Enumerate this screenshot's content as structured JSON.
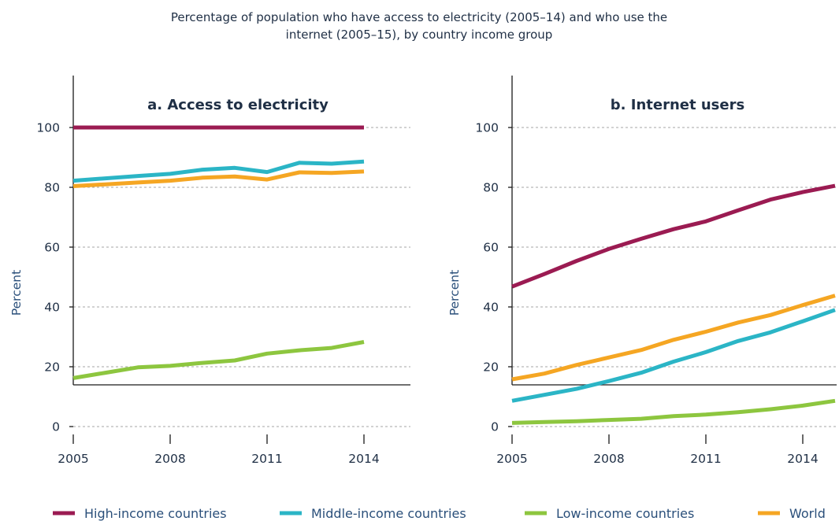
{
  "title_lines": [
    "Percentage of population who have access to electricity (2005–14) and who use the",
    "internet (2005–15), by country income group"
  ],
  "legend": [
    {
      "key": "high",
      "label": "High-income countries",
      "color": "#9b1b52"
    },
    {
      "key": "middle",
      "label": "Middle-income countries",
      "color": "#2bb5c6"
    },
    {
      "key": "low",
      "label": "Low-income countries",
      "color": "#8dc63f"
    },
    {
      "key": "world",
      "label": "World",
      "color": "#f5a623"
    }
  ],
  "chart_data": [
    {
      "type": "line",
      "title": "a. Access to electricity",
      "ylabel": "Percent",
      "xlabel": "",
      "x": [
        2005,
        2006,
        2007,
        2008,
        2009,
        2010,
        2011,
        2012,
        2013,
        2014
      ],
      "x_ticks": [
        2005,
        2008,
        2011,
        2014
      ],
      "xlim": [
        2005,
        2015
      ],
      "y_ticks": [
        0,
        20,
        40,
        60,
        80,
        100
      ],
      "ylim": [
        0,
        100
      ],
      "grid": true,
      "series": [
        {
          "name": "High-income countries",
          "key": "high",
          "values": [
            100,
            100,
            100,
            100,
            100,
            100,
            100,
            100,
            100,
            100
          ]
        },
        {
          "name": "Middle-income countries",
          "key": "middle",
          "values": [
            82.2,
            83.0,
            83.8,
            84.5,
            85.9,
            86.5,
            85.1,
            88.2,
            87.9,
            88.6
          ]
        },
        {
          "name": "World",
          "key": "world",
          "values": [
            80.4,
            81.0,
            81.6,
            82.2,
            83.2,
            83.6,
            82.6,
            85.0,
            84.8,
            85.3
          ]
        },
        {
          "name": "Low-income countries",
          "key": "low",
          "values": [
            16.2,
            18.0,
            19.8,
            20.3,
            21.3,
            22.1,
            24.4,
            25.5,
            26.3,
            28.3
          ]
        }
      ]
    },
    {
      "type": "line",
      "title": "b. Internet users",
      "ylabel": "Percent",
      "xlabel": "",
      "x": [
        2005,
        2006,
        2007,
        2008,
        2009,
        2010,
        2011,
        2012,
        2013,
        2014,
        2015
      ],
      "x_ticks": [
        2005,
        2008,
        2011,
        2014
      ],
      "xlim": [
        2005,
        2015
      ],
      "y_ticks": [
        0,
        20,
        40,
        60,
        80,
        100
      ],
      "ylim": [
        0,
        100
      ],
      "grid": true,
      "series": [
        {
          "name": "High-income countries",
          "key": "high",
          "values": [
            46.8,
            51.0,
            55.4,
            59.4,
            62.8,
            66.0,
            68.6,
            72.3,
            75.9,
            78.4,
            80.5
          ]
        },
        {
          "name": "World",
          "key": "world",
          "values": [
            15.8,
            17.7,
            20.6,
            23.1,
            25.6,
            29.0,
            31.7,
            34.8,
            37.3,
            40.6,
            43.8
          ]
        },
        {
          "name": "Middle-income countries",
          "key": "middle",
          "values": [
            8.6,
            10.6,
            12.6,
            15.2,
            18.0,
            21.7,
            24.9,
            28.6,
            31.5,
            35.2,
            39.0
          ]
        },
        {
          "name": "Low-income countries",
          "key": "low",
          "values": [
            1.2,
            1.5,
            1.8,
            2.2,
            2.6,
            3.5,
            4.0,
            4.8,
            5.8,
            7.0,
            8.6
          ]
        }
      ]
    }
  ]
}
